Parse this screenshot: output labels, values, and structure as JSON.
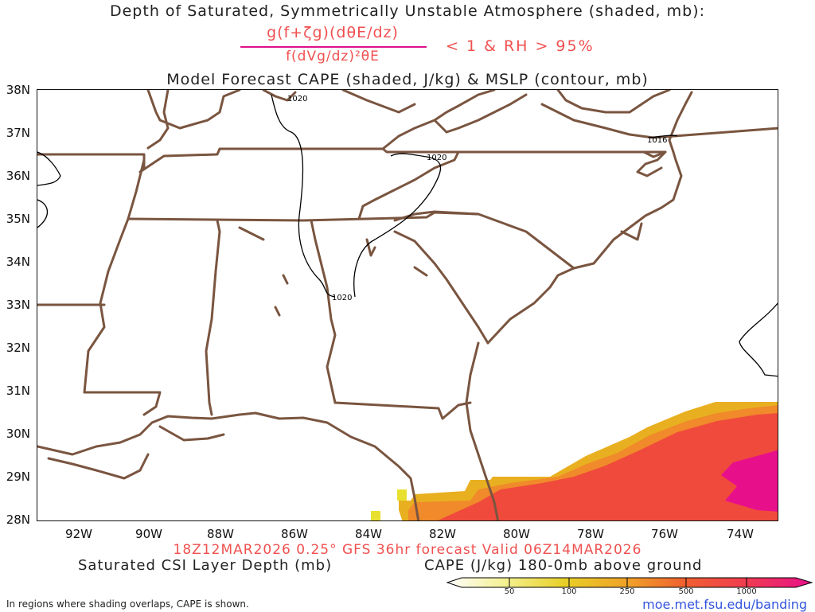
{
  "header": {
    "title_line1": "Depth of Saturated, Symmetrically Unstable Atmosphere (shaded, mb):",
    "fraction_numerator": "g(f+ζg)(dθE/dz)",
    "fraction_denominator": "f(dVg/dz)²θE",
    "condition": "< 1 & RH > 95%",
    "title_line2": "Model Forecast CAPE (shaded, J/kg) & MSLP (contour, mb)"
  },
  "axes": {
    "latitude_labels": [
      "38N",
      "37N",
      "36N",
      "35N",
      "34N",
      "33N",
      "32N",
      "31N",
      "30N",
      "29N",
      "28N"
    ],
    "longitude_labels": [
      "92W",
      "90W",
      "88W",
      "86W",
      "84W",
      "82W",
      "80W",
      "78W",
      "76W",
      "74W"
    ]
  },
  "contours": {
    "label": "1020",
    "label_east": "1016"
  },
  "footer": {
    "run_info": "18Z12MAR2026 0.25° GFS 36hr forecast Valid 06Z14MAR2026",
    "csi_label": "Saturated CSI Layer Depth (mb)",
    "cape_label": "CAPE (J/kg) 180-0mb above ground",
    "note": "In regions where shading overlaps, CAPE is shown.",
    "link": "moe.met.fsu.edu/banding"
  },
  "colorbar": {
    "ticks": [
      "50",
      "100",
      "250",
      "500",
      "1000"
    ],
    "colors": [
      "#ffffff",
      "#e8e030",
      "#e8b020",
      "#f08a2a",
      "#f04a3c",
      "#e8108a"
    ]
  },
  "colors": {
    "boundary": "#7a5540",
    "contour": "#000000",
    "title_red": "#f05050",
    "fraction_bar": "#e0108a"
  }
}
